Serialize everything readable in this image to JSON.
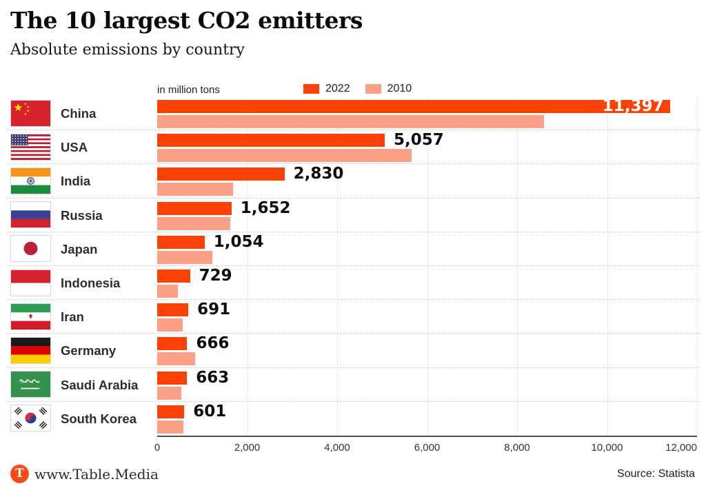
{
  "header": {
    "title": "The 10 largest CO2 emitters",
    "subtitle": "Absolute emissions by country"
  },
  "chart": {
    "unit_label": "in million tons",
    "legend": [
      {
        "label": "2022",
        "color": "#fb4103"
      },
      {
        "label": "2010",
        "color": "#fca188"
      }
    ],
    "axis_tick_labels": [
      "0",
      "2,000",
      "4,000",
      "6,000",
      "8,000",
      "10,000",
      "12,000"
    ]
  },
  "chart_data": {
    "type": "bar",
    "orientation": "horizontal",
    "title": "The 10 largest CO2 emitters",
    "subtitle": "Absolute emissions by country",
    "unit": "million tons",
    "categories": [
      "China",
      "USA",
      "India",
      "Russia",
      "Japan",
      "Indonesia",
      "Iran",
      "Germany",
      "Saudi Arabia",
      "South Korea"
    ],
    "series": [
      {
        "name": "2022",
        "color": "#fb4103",
        "values": [
          11397,
          5057,
          2830,
          1652,
          1054,
          729,
          691,
          666,
          663,
          601
        ]
      },
      {
        "name": "2010",
        "color": "#fca188",
        "values": [
          8600,
          5650,
          1680,
          1620,
          1220,
          460,
          570,
          840,
          530,
          590
        ],
        "note": "2010 bars are unlabeled in the chart; values estimated from bar lengths"
      }
    ],
    "value_labels_2022": [
      "11,397",
      "5,057",
      "2,830",
      "1,652",
      "1,054",
      "729",
      "691",
      "666",
      "663",
      "601"
    ],
    "xlim": [
      0,
      12000
    ],
    "x_ticks": [
      0,
      2000,
      4000,
      6000,
      8000,
      10000,
      12000
    ],
    "legend_position": "top",
    "grid": "faint vertical gridlines at ticks"
  },
  "rows": [
    {
      "country": "China",
      "flag": "cn",
      "value_2022": 11397,
      "value_label": "11,397",
      "value_2010": 8600,
      "label_inside_bar": true
    },
    {
      "country": "USA",
      "flag": "us",
      "value_2022": 5057,
      "value_label": "5,057",
      "value_2010": 5650,
      "label_inside_bar": false
    },
    {
      "country": "India",
      "flag": "in",
      "value_2022": 2830,
      "value_label": "2,830",
      "value_2010": 1680,
      "label_inside_bar": false
    },
    {
      "country": "Russia",
      "flag": "ru",
      "value_2022": 1652,
      "value_label": "1,652",
      "value_2010": 1620,
      "label_inside_bar": false
    },
    {
      "country": "Japan",
      "flag": "jp",
      "value_2022": 1054,
      "value_label": "1,054",
      "value_2010": 1220,
      "label_inside_bar": false
    },
    {
      "country": "Indonesia",
      "flag": "id",
      "value_2022": 729,
      "value_label": "729",
      "value_2010": 460,
      "label_inside_bar": false
    },
    {
      "country": "Iran",
      "flag": "ir",
      "value_2022": 691,
      "value_label": "691",
      "value_2010": 570,
      "label_inside_bar": false
    },
    {
      "country": "Germany",
      "flag": "de",
      "value_2022": 666,
      "value_label": "666",
      "value_2010": 840,
      "label_inside_bar": false
    },
    {
      "country": "Saudi Arabia",
      "flag": "sa",
      "value_2022": 663,
      "value_label": "663",
      "value_2010": 530,
      "label_inside_bar": false
    },
    {
      "country": "South Korea",
      "flag": "kr",
      "value_2022": 601,
      "value_label": "601",
      "value_2010": 590,
      "label_inside_bar": false
    }
  ],
  "footer": {
    "logo_letter": "T",
    "website": "www.Table.Media",
    "source": "Source: Statista"
  }
}
